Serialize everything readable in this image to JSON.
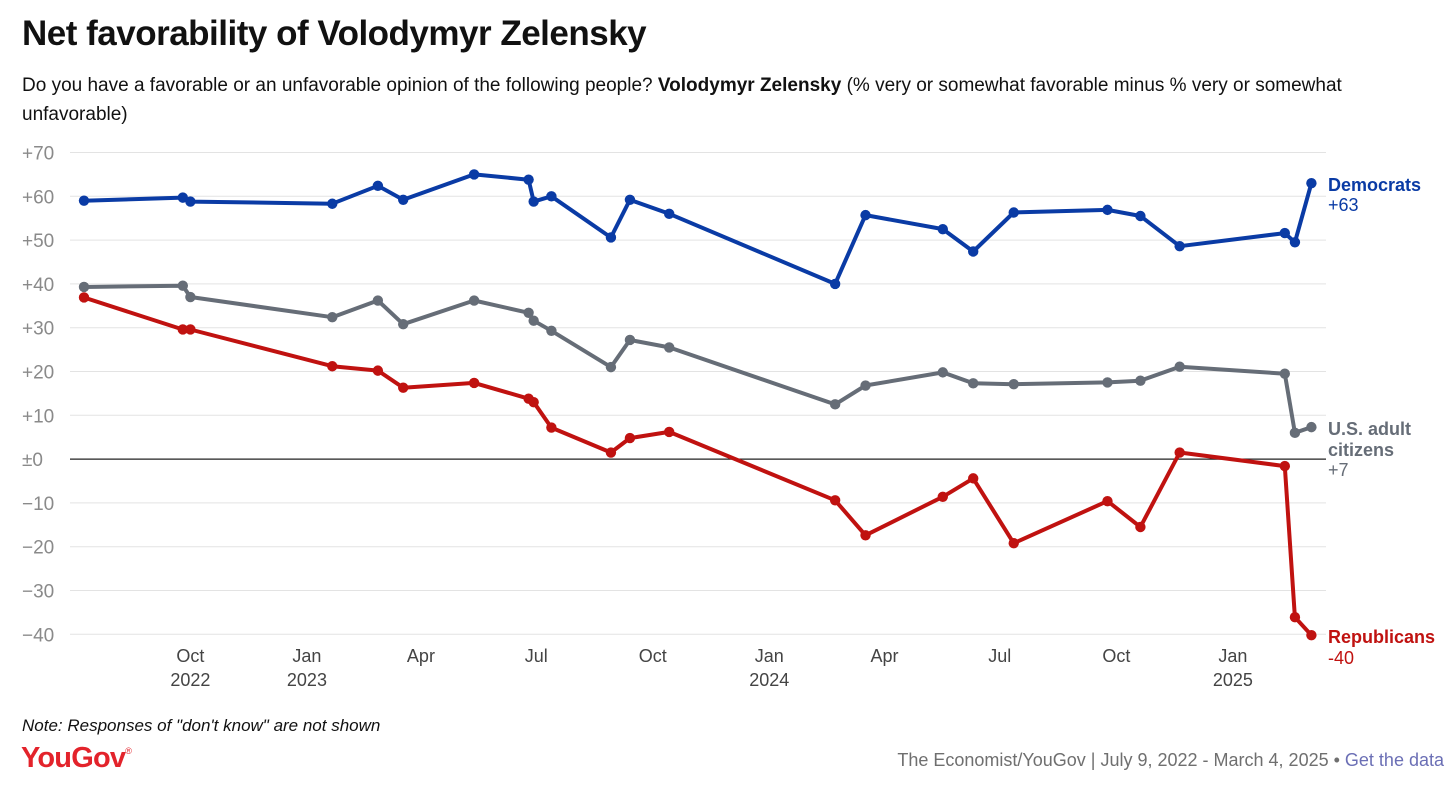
{
  "header": {
    "title": "Net favorability of Volodymyr Zelensky",
    "subtitle_pre": "Do you have a favorable or an unfavorable opinion of the following people?",
    "subtitle_bold": "Volodymyr Zelensky",
    "subtitle_post": "(% very or somewhat favorable minus % very or somewhat unfavorable)"
  },
  "footer": {
    "note": "Note: Responses of \"don't know\" are not shown",
    "logo": "YouGov",
    "logo_mark": "®",
    "source": "The Economist/YouGov | July 9, 2022 - March 4, 2025 •",
    "link": "Get the data"
  },
  "chart_data": {
    "type": "line",
    "y_ticks": [
      70,
      60,
      50,
      40,
      30,
      20,
      10,
      0,
      -10,
      -20,
      -30,
      -40
    ],
    "y_tick_labels": [
      "+70",
      "+60",
      "+50",
      "+40",
      "+30",
      "+20",
      "+10",
      "±0",
      "−10",
      "−20",
      "−30",
      "−40"
    ],
    "ylim": [
      -40,
      70
    ],
    "x_range": [
      "2022-07-09",
      "2025-03-04"
    ],
    "x_ticks": [
      {
        "date": "2022-10-01",
        "label": "Oct",
        "year": "2022"
      },
      {
        "date": "2023-01-01",
        "label": "Jan",
        "year": "2023"
      },
      {
        "date": "2023-04-01",
        "label": "Apr",
        "year": ""
      },
      {
        "date": "2023-07-01",
        "label": "Jul",
        "year": ""
      },
      {
        "date": "2023-10-01",
        "label": "Oct",
        "year": ""
      },
      {
        "date": "2024-01-01",
        "label": "Jan",
        "year": "2024"
      },
      {
        "date": "2024-04-01",
        "label": "Apr",
        "year": ""
      },
      {
        "date": "2024-07-01",
        "label": "Jul",
        "year": ""
      },
      {
        "date": "2024-10-01",
        "label": "Oct",
        "year": ""
      },
      {
        "date": "2025-01-01",
        "label": "Jan",
        "year": "2025"
      }
    ],
    "grid": true,
    "legend": "right end labels",
    "series": [
      {
        "name": "Democrats",
        "end_label": "+63",
        "color": "#0a3ba5",
        "points": [
          [
            "2022-07-09",
            59
          ],
          [
            "2022-09-25",
            59.7
          ],
          [
            "2022-10-01",
            58.8
          ],
          [
            "2023-01-21",
            58.3
          ],
          [
            "2023-02-26",
            62.4
          ],
          [
            "2023-03-18",
            59.2
          ],
          [
            "2023-05-13",
            65
          ],
          [
            "2023-06-25",
            63.8
          ],
          [
            "2023-06-29",
            58.8
          ],
          [
            "2023-07-13",
            60
          ],
          [
            "2023-08-29",
            50.6
          ],
          [
            "2023-09-13",
            59.2
          ],
          [
            "2023-10-14",
            56
          ],
          [
            "2024-02-22",
            40
          ],
          [
            "2024-03-17",
            55.7
          ],
          [
            "2024-05-17",
            52.5
          ],
          [
            "2024-06-10",
            47.4
          ],
          [
            "2024-07-12",
            56.3
          ],
          [
            "2024-09-24",
            56.9
          ],
          [
            "2024-10-20",
            55.5
          ],
          [
            "2024-11-20",
            48.6
          ],
          [
            "2025-02-11",
            51.6
          ],
          [
            "2025-02-19",
            49.5
          ],
          [
            "2025-03-04",
            63
          ]
        ]
      },
      {
        "name": "U.S. adult citizens",
        "end_label": "+7",
        "color": "#666d77",
        "points": [
          [
            "2022-07-09",
            39.3
          ],
          [
            "2022-09-25",
            39.6
          ],
          [
            "2022-10-01",
            37
          ],
          [
            "2023-01-21",
            32.4
          ],
          [
            "2023-02-26",
            36.2
          ],
          [
            "2023-03-18",
            30.8
          ],
          [
            "2023-05-13",
            36.2
          ],
          [
            "2023-06-25",
            33.4
          ],
          [
            "2023-06-29",
            31.6
          ],
          [
            "2023-07-13",
            29.3
          ],
          [
            "2023-08-29",
            21
          ],
          [
            "2023-09-13",
            27.2
          ],
          [
            "2023-10-14",
            25.5
          ],
          [
            "2024-02-22",
            12.5
          ],
          [
            "2024-03-17",
            16.8
          ],
          [
            "2024-05-17",
            19.8
          ],
          [
            "2024-06-10",
            17.3
          ],
          [
            "2024-07-12",
            17.1
          ],
          [
            "2024-09-24",
            17.5
          ],
          [
            "2024-10-20",
            17.9
          ],
          [
            "2024-11-20",
            21.1
          ],
          [
            "2025-02-11",
            19.5
          ],
          [
            "2025-02-19",
            6
          ],
          [
            "2025-03-04",
            7.3
          ]
        ]
      },
      {
        "name": "Republicans",
        "end_label": "-40",
        "color": "#c01210",
        "points": [
          [
            "2022-07-09",
            36.9
          ],
          [
            "2022-09-25",
            29.6
          ],
          [
            "2022-10-01",
            29.6
          ],
          [
            "2023-01-21",
            21.2
          ],
          [
            "2023-02-26",
            20.2
          ],
          [
            "2023-03-18",
            16.3
          ],
          [
            "2023-05-13",
            17.4
          ],
          [
            "2023-06-25",
            13.8
          ],
          [
            "2023-06-29",
            13
          ],
          [
            "2023-07-13",
            7.2
          ],
          [
            "2023-08-29",
            1.5
          ],
          [
            "2023-09-13",
            4.8
          ],
          [
            "2023-10-14",
            6.2
          ],
          [
            "2024-02-22",
            -9.4
          ],
          [
            "2024-03-17",
            -17.4
          ],
          [
            "2024-05-17",
            -8.6
          ],
          [
            "2024-06-10",
            -4.4
          ],
          [
            "2024-07-12",
            -19.2
          ],
          [
            "2024-09-24",
            -9.6
          ],
          [
            "2024-10-20",
            -15.5
          ],
          [
            "2024-11-20",
            1.5
          ],
          [
            "2025-02-11",
            -1.6
          ],
          [
            "2025-02-19",
            -36.1
          ],
          [
            "2025-03-04",
            -40.2
          ]
        ]
      }
    ]
  }
}
